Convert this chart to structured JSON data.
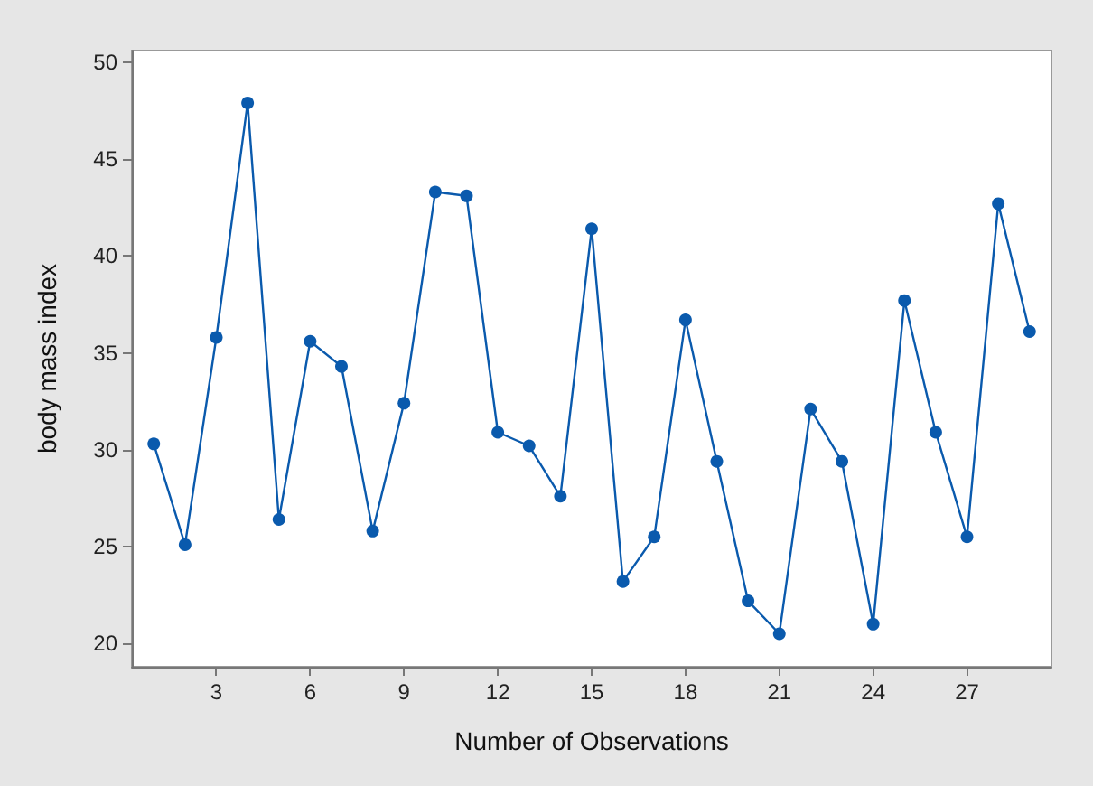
{
  "chart_data": {
    "type": "line",
    "xlabel": "Number of Observations",
    "ylabel": "body mass index",
    "x": [
      1,
      2,
      3,
      4,
      5,
      6,
      7,
      8,
      9,
      10,
      11,
      12,
      13,
      14,
      15,
      16,
      17,
      18,
      19,
      20,
      21,
      22,
      23,
      24,
      25,
      26,
      27,
      28,
      29
    ],
    "series": [
      {
        "color": "#0a5aad",
        "values": [
          30.3,
          25.1,
          35.8,
          47.9,
          26.4,
          35.6,
          34.3,
          25.8,
          32.4,
          43.3,
          43.1,
          30.9,
          30.2,
          27.6,
          41.4,
          23.2,
          25.5,
          36.7,
          29.4,
          22.2,
          20.5,
          32.1,
          29.4,
          21.0,
          37.7,
          30.9,
          25.5,
          42.7,
          36.1
        ]
      }
    ],
    "xlim": [
      0.3,
      29.7
    ],
    "xticks": [
      3,
      6,
      9,
      12,
      15,
      18,
      21,
      24,
      27
    ],
    "ylim": [
      18.8,
      50.6
    ],
    "yticks": [
      20,
      25,
      30,
      35,
      40,
      45,
      50
    ],
    "grid": false,
    "marker": "circle",
    "line_style": "solid"
  }
}
